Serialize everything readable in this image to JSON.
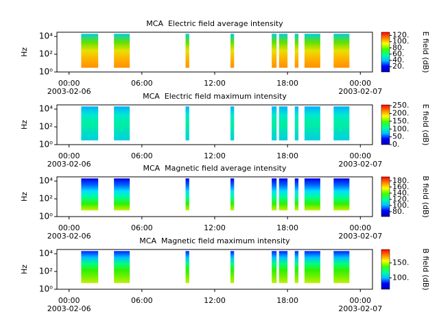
{
  "chart_data": [
    {
      "type": "spectrogram",
      "title": "MCA  Electric field average intensity",
      "ylabel": "Hz",
      "xlim": [
        -1,
        25
      ],
      "xticks": [
        {
          "value": 0,
          "label": "00:00"
        },
        {
          "value": 6,
          "label": "06:00"
        },
        {
          "value": 12,
          "label": "12:00"
        },
        {
          "value": 18,
          "label": "18:00"
        },
        {
          "value": 24,
          "label": "00:00"
        }
      ],
      "date_labels": [
        {
          "value": 0,
          "label": "2003-02-06"
        },
        {
          "value": 24,
          "label": "2003-02-07"
        }
      ],
      "ylim": [
        1,
        30000
      ],
      "log_y": true,
      "yticks": [
        {
          "value": 1,
          "label": "10⁰"
        },
        {
          "value": 100,
          "label": "10²"
        },
        {
          "value": 10000,
          "label": "10⁴"
        }
      ],
      "freq_range": [
        3,
        20000
      ],
      "segments": [
        [
          1.0,
          2.4
        ],
        [
          3.7,
          5.0
        ],
        [
          9.6,
          9.9
        ],
        [
          13.3,
          13.6
        ],
        [
          16.7,
          17.1
        ],
        [
          17.3,
          18.0
        ],
        [
          18.6,
          18.9
        ],
        [
          19.4,
          20.7
        ],
        [
          21.8,
          23.1
        ]
      ],
      "segment_colors": [
        "#00d0e0",
        "#60e000",
        "#e8e000",
        "#ffb000",
        "#ff9000"
      ],
      "colorbar": {
        "label": "E field (dB)",
        "clim": [
          3,
          130
        ],
        "ticks": [
          {
            "value": 20,
            "label": "20."
          },
          {
            "value": 40,
            "label": "40."
          },
          {
            "value": 60,
            "label": "60."
          },
          {
            "value": 80,
            "label": "80."
          },
          {
            "value": 100,
            "label": "100."
          },
          {
            "value": 120,
            "label": "120."
          }
        ],
        "colormap": [
          "#0000b0",
          "#0000ff",
          "#00c0ff",
          "#00ffa0",
          "#40ff00",
          "#ffff00",
          "#ff8000",
          "#ff0000"
        ]
      }
    },
    {
      "type": "spectrogram",
      "title": "MCA  Electric field maximum intensity",
      "ylabel": "Hz",
      "xlim": [
        -1,
        25
      ],
      "xticks": [
        {
          "value": 0,
          "label": "00:00"
        },
        {
          "value": 6,
          "label": "06:00"
        },
        {
          "value": 12,
          "label": "12:00"
        },
        {
          "value": 18,
          "label": "18:00"
        },
        {
          "value": 24,
          "label": "00:00"
        }
      ],
      "date_labels": [
        {
          "value": 0,
          "label": "2003-02-06"
        },
        {
          "value": 24,
          "label": "2003-02-07"
        }
      ],
      "ylim": [
        1,
        30000
      ],
      "log_y": true,
      "yticks": [
        {
          "value": 1,
          "label": "10⁰"
        },
        {
          "value": 100,
          "label": "10²"
        },
        {
          "value": 10000,
          "label": "10⁴"
        }
      ],
      "freq_range": [
        3,
        20000
      ],
      "segments": [
        [
          1.0,
          2.4
        ],
        [
          3.7,
          5.0
        ],
        [
          9.6,
          9.9
        ],
        [
          13.3,
          13.6
        ],
        [
          16.7,
          17.1
        ],
        [
          17.3,
          18.0
        ],
        [
          18.6,
          18.9
        ],
        [
          19.4,
          20.7
        ],
        [
          21.8,
          23.1
        ]
      ],
      "segment_colors": [
        "#00b0ff",
        "#00e8d0",
        "#00f0a0",
        "#00e0c0",
        "#00d0e0"
      ],
      "colorbar": {
        "label": "E field (dB)",
        "clim": [
          0,
          255
        ],
        "ticks": [
          {
            "value": 0,
            "label": "0."
          },
          {
            "value": 50,
            "label": "50."
          },
          {
            "value": 100,
            "label": "100."
          },
          {
            "value": 150,
            "label": "150."
          },
          {
            "value": 200,
            "label": "200."
          },
          {
            "value": 250,
            "label": "250."
          }
        ],
        "colormap": [
          "#0000b0",
          "#0000ff",
          "#00c0ff",
          "#00ffa0",
          "#40ff00",
          "#ffff00",
          "#ff8000",
          "#ff0000"
        ]
      }
    },
    {
      "type": "spectrogram",
      "title": "MCA  Magnetic field average intensity",
      "ylabel": "Hz",
      "xlim": [
        -1,
        25
      ],
      "xticks": [
        {
          "value": 0,
          "label": "00:00"
        },
        {
          "value": 6,
          "label": "06:00"
        },
        {
          "value": 12,
          "label": "12:00"
        },
        {
          "value": 18,
          "label": "18:00"
        },
        {
          "value": 24,
          "label": "00:00"
        }
      ],
      "date_labels": [
        {
          "value": 0,
          "label": "2003-02-06"
        },
        {
          "value": 24,
          "label": "2003-02-07"
        }
      ],
      "ylim": [
        1,
        30000
      ],
      "log_y": true,
      "yticks": [
        {
          "value": 1,
          "label": "10⁰"
        },
        {
          "value": 100,
          "label": "10²"
        },
        {
          "value": 10000,
          "label": "10⁴"
        }
      ],
      "freq_range": [
        5,
        20000
      ],
      "segments": [
        [
          1.0,
          2.4
        ],
        [
          3.7,
          5.0
        ],
        [
          9.6,
          9.9
        ],
        [
          13.3,
          13.6
        ],
        [
          16.7,
          17.1
        ],
        [
          17.3,
          18.0
        ],
        [
          18.6,
          18.9
        ],
        [
          19.4,
          20.7
        ],
        [
          21.8,
          23.1
        ]
      ],
      "segment_colors": [
        "#0000e8",
        "#0060ff",
        "#00e0ff",
        "#00ff90",
        "#30f000",
        "#c8f000"
      ],
      "colorbar": {
        "label": "B field (dB)",
        "clim": [
          64,
          193
        ],
        "ticks": [
          {
            "value": 80,
            "label": "80."
          },
          {
            "value": 100,
            "label": "100."
          },
          {
            "value": 120,
            "label": "120."
          },
          {
            "value": 140,
            "label": "140."
          },
          {
            "value": 160,
            "label": "160."
          },
          {
            "value": 180,
            "label": "180."
          }
        ],
        "colormap": [
          "#0000b0",
          "#0000ff",
          "#00c0ff",
          "#00ffa0",
          "#40ff00",
          "#ffff00",
          "#ff8000",
          "#ff0000"
        ]
      }
    },
    {
      "type": "spectrogram",
      "title": "MCA  Magnetic field maximum intensity",
      "ylabel": "Hz",
      "xlim": [
        -1,
        25
      ],
      "xticks": [
        {
          "value": 0,
          "label": "00:00"
        },
        {
          "value": 6,
          "label": "06:00"
        },
        {
          "value": 12,
          "label": "12:00"
        },
        {
          "value": 18,
          "label": "18:00"
        },
        {
          "value": 24,
          "label": "00:00"
        }
      ],
      "date_labels": [
        {
          "value": 0,
          "label": "2003-02-06"
        },
        {
          "value": 24,
          "label": "2003-02-07"
        }
      ],
      "ylim": [
        1,
        30000
      ],
      "log_y": true,
      "yticks": [
        {
          "value": 1,
          "label": "10⁰"
        },
        {
          "value": 100,
          "label": "10²"
        },
        {
          "value": 10000,
          "label": "10⁴"
        }
      ],
      "freq_range": [
        5,
        20000
      ],
      "segments": [
        [
          1.0,
          2.4
        ],
        [
          3.7,
          5.0
        ],
        [
          9.6,
          9.9
        ],
        [
          13.3,
          13.6
        ],
        [
          16.7,
          17.1
        ],
        [
          17.3,
          18.0
        ],
        [
          18.6,
          18.9
        ],
        [
          19.4,
          20.7
        ],
        [
          21.8,
          23.1
        ]
      ],
      "segment_colors": [
        "#0020ff",
        "#00c0ff",
        "#00ff80",
        "#30f000",
        "#70f000",
        "#c0f000"
      ],
      "colorbar": {
        "label": "B field (dB)",
        "clim": [
          62,
          195
        ],
        "ticks": [
          {
            "value": 100,
            "label": "100."
          },
          {
            "value": 150,
            "label": "150."
          }
        ],
        "colormap": [
          "#0000b0",
          "#0000ff",
          "#00c0ff",
          "#00ffa0",
          "#40ff00",
          "#ffff00",
          "#ff8000",
          "#ff0000"
        ]
      }
    }
  ]
}
